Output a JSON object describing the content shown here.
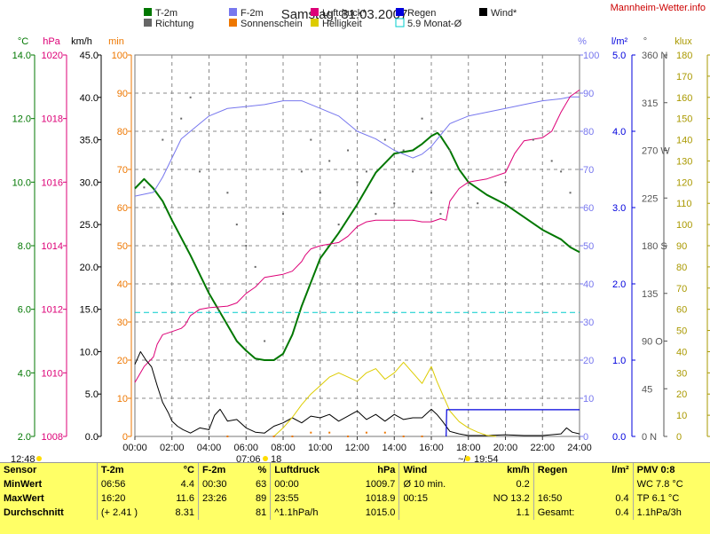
{
  "title": "Samstag, 31.03.2007",
  "site": "Mannheim-Wetter.info",
  "units": {
    "celsius": "°C",
    "hpa": "hPa",
    "kmh": "km/h",
    "min": "min",
    "pct": "%",
    "lm2": "l/m²",
    "deg": "°",
    "klux": "klux"
  },
  "legend": [
    {
      "label": "T-2m",
      "color": "#007700",
      "swatch": "fill"
    },
    {
      "label": "Richtung",
      "color": "#666666",
      "swatch": "fill"
    },
    {
      "label": "F-2m",
      "color": "#7777ee",
      "swatch": "fill"
    },
    {
      "label": "Sonnenschein",
      "color": "#ee7700",
      "swatch": "fill"
    },
    {
      "label": "Luftdruck*",
      "color": "#dd0077",
      "swatch": "fill"
    },
    {
      "label": "Helligkeit",
      "color": "#ddcc00",
      "swatch": "fill"
    },
    {
      "label": "Regen",
      "color": "#0000dd",
      "swatch": "fill"
    },
    {
      "label": "5.9 Monat-Ø",
      "color": "#00cccc",
      "swatch": "outline"
    },
    {
      "label": "Wind*",
      "color": "#000000",
      "swatch": "fill"
    }
  ],
  "axes": {
    "celsius": {
      "min": 2.0,
      "max": 14.0,
      "ticks": [
        "2.0",
        "4.0",
        "6.0",
        "8.0",
        "10.0",
        "12.0",
        "14.0"
      ],
      "color": "#007700"
    },
    "hpa": {
      "min": 1008,
      "max": 1020,
      "ticks": [
        "1008",
        "1010",
        "1012",
        "1014",
        "1016",
        "1018",
        "1020"
      ],
      "color": "#dd0077"
    },
    "kmh": {
      "min": 0,
      "max": 45,
      "ticks": [
        "0.0",
        "5.0",
        "10.0",
        "15.0",
        "20.0",
        "25.0",
        "30.0",
        "35.0",
        "40.0",
        "45.0"
      ],
      "color": "#000000"
    },
    "min": {
      "min": 0,
      "max": 100,
      "ticks": [
        "0",
        "10",
        "20",
        "30",
        "40",
        "50",
        "60",
        "70",
        "80",
        "90",
        "100"
      ],
      "color": "#ee7700"
    },
    "pct": {
      "min": 0,
      "max": 100,
      "ticks": [
        "0",
        "10",
        "20",
        "30",
        "40",
        "50",
        "60",
        "70",
        "80",
        "90",
        "100"
      ],
      "color": "#7777ee"
    },
    "lm2": {
      "min": 0,
      "max": 5,
      "ticks": [
        "0.0",
        "1.0",
        "2.0",
        "3.0",
        "4.0",
        "5.0"
      ],
      "color": "#0000dd"
    },
    "deg": {
      "min": 0,
      "max": 360,
      "ticks": [
        "0 N",
        "45",
        "90 O",
        "135",
        "180 S",
        "225",
        "270 W",
        "315",
        "360 N"
      ],
      "color": "#555555"
    },
    "klux": {
      "min": 0,
      "max": 180,
      "ticks": [
        "0",
        "10",
        "20",
        "30",
        "40",
        "50",
        "60",
        "70",
        "80",
        "90",
        "100",
        "110",
        "120",
        "130",
        "140",
        "150",
        "160",
        "170",
        "180"
      ],
      "color": "#aa9900"
    }
  },
  "x_ticks": [
    "00:00",
    "02:00",
    "04:00",
    "06:00",
    "08:00",
    "10:00",
    "12:00",
    "14:00",
    "16:00",
    "18:00",
    "20:00",
    "22:00",
    "24:00"
  ],
  "sun_markers": {
    "sunrise": "07:06",
    "sunrise_sep": "18",
    "sunset": "19:54",
    "sunset_prefix": "~/"
  },
  "corner_label": "12:48",
  "chart_data": {
    "type": "line",
    "x_unit": "hour",
    "series": [
      {
        "name": "T-2m",
        "axis": "celsius",
        "color": "#007700",
        "width": 2,
        "x": [
          0,
          0.5,
          1,
          1.5,
          2,
          3,
          4,
          5,
          5.5,
          6,
          6.5,
          7,
          7.5,
          8,
          8.5,
          9,
          10,
          11,
          12,
          13,
          14,
          15,
          15.5,
          16,
          16.33,
          16.5,
          17,
          17.5,
          18,
          19,
          20,
          21,
          22,
          23,
          23.5,
          24
        ],
        "y": [
          9.8,
          10.1,
          9.8,
          9.4,
          8.8,
          7.7,
          6.5,
          5.5,
          5.0,
          4.7,
          4.45,
          4.4,
          4.4,
          4.6,
          5.2,
          6.1,
          7.6,
          8.4,
          9.3,
          10.3,
          10.9,
          11.0,
          11.2,
          11.45,
          11.55,
          11.45,
          11.0,
          10.4,
          10.0,
          9.6,
          9.3,
          8.9,
          8.5,
          8.2,
          7.95,
          7.8
        ]
      },
      {
        "name": "F-2m",
        "axis": "pct",
        "color": "#7777ee",
        "width": 1,
        "x": [
          0,
          1,
          1.5,
          2,
          2.5,
          3,
          4,
          5,
          6,
          7,
          8,
          9,
          10,
          11,
          12,
          13,
          14,
          14.5,
          15,
          15.5,
          16,
          16.5,
          17,
          17.5,
          18,
          19,
          20,
          21,
          22,
          23,
          23.5,
          24
        ],
        "y": [
          63,
          64,
          68,
          73,
          78,
          80,
          84,
          86,
          86.5,
          87,
          88,
          88,
          86,
          84,
          80,
          78,
          75,
          74,
          73,
          74,
          76,
          79,
          82,
          83,
          84,
          85,
          86,
          87,
          88,
          88.5,
          89,
          89
        ]
      },
      {
        "name": "Luftdruck*",
        "axis": "hpa",
        "color": "#dd0077",
        "width": 1,
        "x": [
          0,
          0.5,
          1,
          1.2,
          1.5,
          2,
          2.5,
          2.7,
          3,
          3.5,
          4,
          5,
          5.5,
          6,
          6.5,
          7,
          7.5,
          8,
          8.5,
          9,
          9.2,
          9.5,
          10,
          11,
          11.5,
          12,
          12.5,
          13,
          14,
          15,
          15.5,
          16,
          16.5,
          16.8,
          17,
          17.5,
          18,
          19,
          20,
          20.5,
          21,
          22,
          22.5,
          23,
          23.5,
          24
        ],
        "y": [
          1009.7,
          1010.2,
          1010.5,
          1010.9,
          1011.2,
          1011.3,
          1011.4,
          1011.5,
          1011.8,
          1012.0,
          1012.05,
          1012.1,
          1012.2,
          1012.5,
          1012.7,
          1013.0,
          1013.05,
          1013.1,
          1013.2,
          1013.5,
          1013.7,
          1013.9,
          1014.0,
          1014.1,
          1014.3,
          1014.6,
          1014.75,
          1014.8,
          1014.8,
          1014.8,
          1014.75,
          1014.75,
          1014.85,
          1014.8,
          1015.4,
          1015.8,
          1016.0,
          1016.1,
          1016.3,
          1016.9,
          1017.3,
          1017.4,
          1017.6,
          1018.2,
          1018.7,
          1018.9
        ]
      },
      {
        "name": "Wind*",
        "axis": "kmh",
        "color": "#000000",
        "width": 1,
        "x": [
          0,
          0.3,
          0.6,
          0.9,
          1.2,
          1.5,
          1.8,
          2,
          2.3,
          2.6,
          3,
          3.5,
          4,
          4.3,
          4.6,
          5,
          5.5,
          6,
          6.5,
          7,
          7.5,
          8,
          8.5,
          9,
          9.5,
          10,
          10.5,
          11,
          11.5,
          12,
          12.5,
          13,
          13.5,
          14,
          14.5,
          15,
          15.5,
          16,
          16.3,
          16.6,
          17,
          17.5,
          18,
          19,
          20,
          21,
          22,
          23,
          23.3,
          23.6,
          24
        ],
        "y": [
          8.5,
          10.0,
          9.0,
          8.2,
          6.0,
          4.0,
          2.8,
          1.8,
          1.2,
          0.8,
          0.4,
          1.0,
          0.8,
          2.5,
          3.2,
          1.8,
          2.0,
          1.0,
          0.5,
          0.4,
          1.2,
          1.6,
          2.2,
          1.6,
          2.4,
          2.2,
          2.6,
          1.8,
          2.4,
          3.0,
          2.0,
          2.6,
          1.8,
          2.6,
          2.0,
          2.2,
          2.2,
          3.2,
          2.6,
          1.8,
          0.6,
          0.3,
          0.1,
          0.1,
          0.2,
          0.1,
          0.1,
          0.3,
          1.0,
          0.5,
          0.3
        ]
      },
      {
        "name": "Helligkeit",
        "axis": "klux",
        "color": "#ddcc00",
        "width": 1,
        "x": [
          7.5,
          8,
          8.5,
          9,
          9.5,
          10,
          10.5,
          11,
          11.5,
          12,
          12.5,
          13,
          13.5,
          14,
          14.5,
          15,
          15.5,
          16,
          16.3,
          16.6,
          17,
          17.5,
          18,
          18.5,
          19,
          19.5
        ],
        "y": [
          0,
          4,
          9,
          15,
          20,
          24,
          28,
          30,
          28,
          26,
          30,
          32,
          27,
          30,
          35,
          30,
          25,
          33,
          26,
          20,
          12,
          7,
          4,
          2,
          0.5,
          0
        ]
      },
      {
        "name": "Regen",
        "axis": "lm2",
        "color": "#0000dd",
        "width": 1.2,
        "x": [
          16.8,
          16.83,
          24
        ],
        "y": [
          0,
          0.35,
          0.35
        ]
      },
      {
        "name": "5.9 Monat-Ø",
        "axis": "celsius",
        "color": "#00cccc",
        "width": 1,
        "dash": "6,4",
        "x": [
          0,
          24
        ],
        "y": [
          5.9,
          5.9
        ]
      },
      {
        "name": "Richtung",
        "axis": "deg",
        "color": "#666666",
        "type": "scatter",
        "x": [
          0.5,
          1.5,
          2.5,
          3.0,
          3.5,
          4.0,
          4.5,
          5.0,
          5.5,
          6.0,
          6.5,
          7.0,
          8.0,
          9.0,
          9.5,
          10.0,
          10.5,
          11.0,
          11.5,
          12.0,
          12.5,
          13.0,
          13.5,
          14.0,
          14.5,
          15.0,
          15.5,
          16.0,
          16.5,
          17.0,
          18.5,
          20.0,
          21.5,
          22.5,
          23.0,
          23.5
        ],
        "y": [
          235,
          280,
          300,
          320,
          250,
          140,
          120,
          230,
          200,
          180,
          160,
          90,
          210,
          250,
          280,
          230,
          260,
          200,
          270,
          240,
          250,
          210,
          280,
          220,
          270,
          250,
          300,
          230,
          210,
          270,
          220,
          240,
          280,
          260,
          250,
          230
        ]
      },
      {
        "name": "Sonnenschein",
        "axis": "min",
        "color": "#ee7700",
        "type": "scatter",
        "x": [
          5.0,
          7.5,
          8.5,
          9.5,
          10.5,
          11.5,
          12.5,
          13.5,
          14.5,
          15.5
        ],
        "y": [
          0,
          0,
          0,
          1,
          1,
          0,
          1,
          1,
          0,
          0
        ]
      }
    ]
  },
  "stats": {
    "headers": [
      "Sensor",
      "T-2m",
      "°C",
      "F-2m",
      "%",
      "Luftdruck",
      "hPa",
      "Wind",
      "km/h",
      "Regen",
      "l/m²",
      "PMV 0:8"
    ],
    "rows": [
      [
        "MinWert",
        "06:56",
        "4.4",
        "00:30",
        "63",
        "00:00",
        "1009.7",
        "Ø 10 min.",
        "0.2",
        "",
        "",
        "WC 7.8 °C"
      ],
      [
        "MaxWert",
        "16:20",
        "11.6",
        "23:26",
        "89",
        "23:55",
        "1018.9",
        "00:15",
        "NO 13.2",
        "16:50",
        "0.4",
        "TP 6.1 °C"
      ],
      [
        "Durchschnitt",
        "(+ 2.41 )",
        "8.31",
        "",
        "81",
        "^1.1hPa/h",
        "1015.0",
        "",
        "1.1",
        "Gesamt:",
        "0.4",
        "1.1hPa/3h"
      ]
    ]
  }
}
